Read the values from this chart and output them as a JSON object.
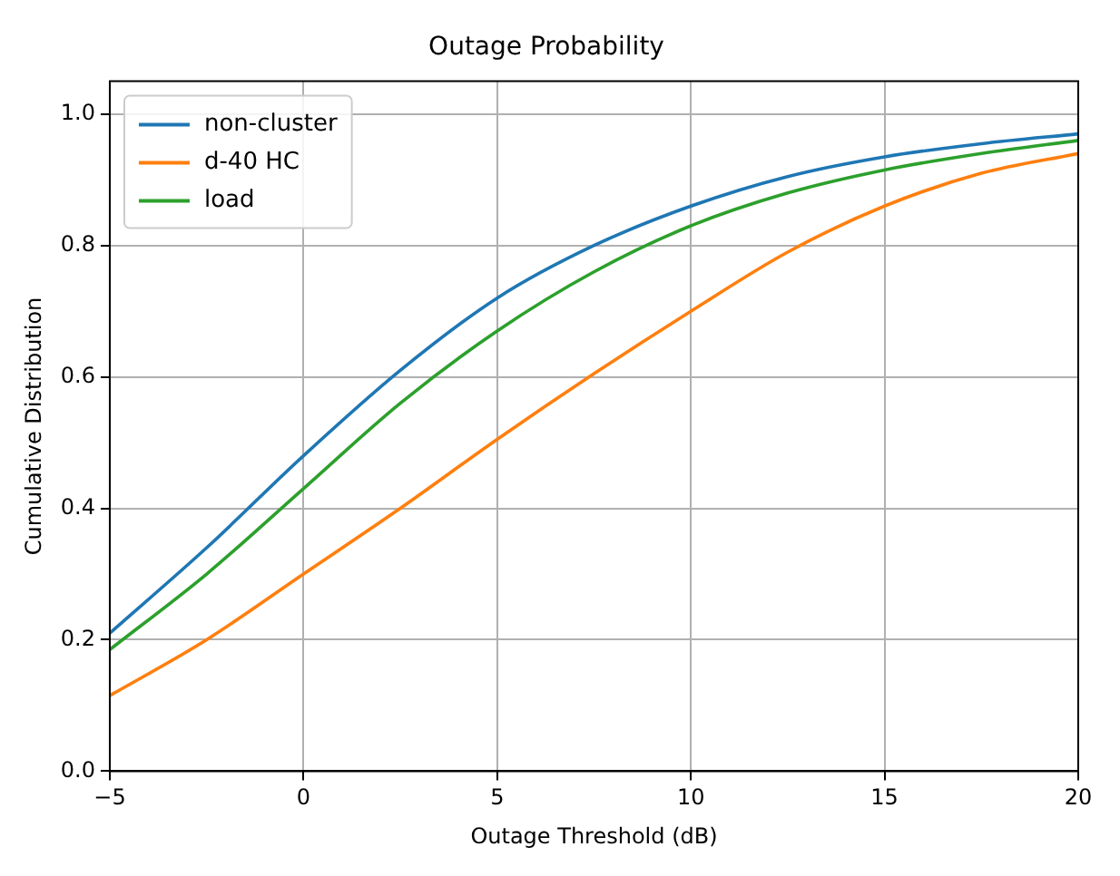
{
  "chart_data": {
    "type": "line",
    "title": "Outage Probability",
    "xlabel": "Outage Threshold (dB)",
    "ylabel": "Cumulative Distribution",
    "x": [
      -5,
      -2.5,
      0,
      2.5,
      5,
      7.5,
      10,
      12.5,
      15,
      17.5,
      20
    ],
    "series": [
      {
        "name": "non-cluster",
        "color": "#1f77b4",
        "values": [
          0.21,
          0.34,
          0.48,
          0.61,
          0.72,
          0.8,
          0.86,
          0.905,
          0.935,
          0.955,
          0.97
        ]
      },
      {
        "name": "d-40 HC",
        "color": "#ff7f0e",
        "values": [
          0.115,
          0.2,
          0.3,
          0.4,
          0.505,
          0.605,
          0.7,
          0.79,
          0.86,
          0.91,
          0.94
        ]
      },
      {
        "name": "load",
        "color": "#2ca02c",
        "values": [
          0.185,
          0.3,
          0.43,
          0.56,
          0.67,
          0.76,
          0.83,
          0.88,
          0.915,
          0.94,
          0.96
        ]
      }
    ],
    "xlim": [
      -5,
      20
    ],
    "xticks": [
      {
        "value": -5,
        "label": "−5"
      },
      0,
      5,
      10,
      15,
      20
    ],
    "ylim": [
      0,
      1.05
    ],
    "yticks": [
      {
        "value": 0,
        "label": "0.0"
      },
      0.2,
      0.4,
      0.6,
      0.8,
      {
        "value": 1,
        "label": "1.0"
      }
    ],
    "grid": true,
    "legend": "top left",
    "marker": "none",
    "line_style": "solid"
  }
}
